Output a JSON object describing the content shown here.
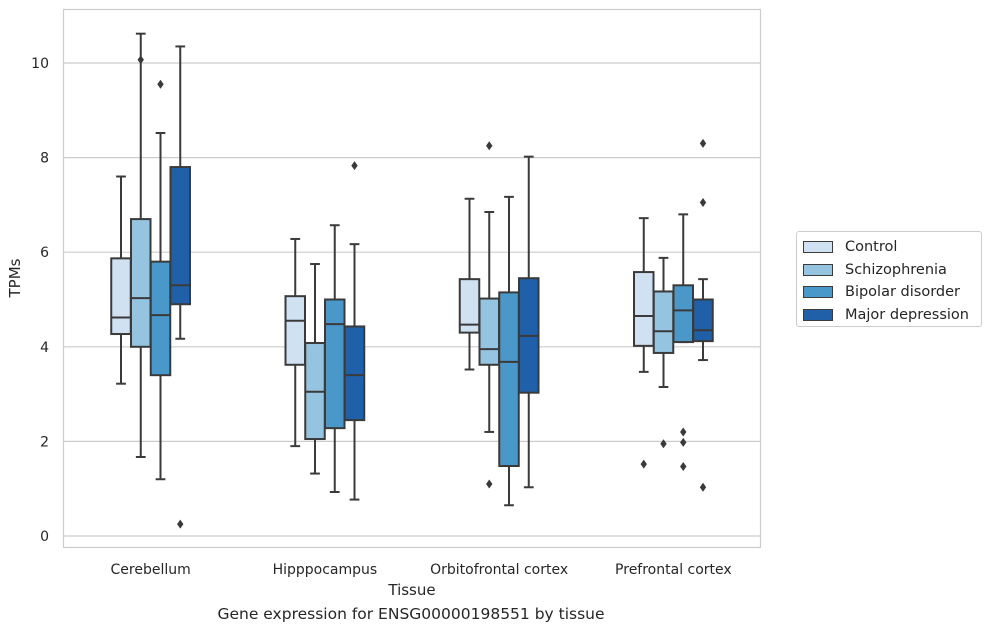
{
  "chart_data": {
    "type": "box",
    "title": "",
    "caption": "Gene expression for ENSG00000198551 by tissue",
    "xlabel": "Tissue",
    "ylabel": "TPMs",
    "ylim": [
      -0.25,
      11.2
    ],
    "yticks": [
      0,
      2,
      4,
      6,
      8,
      10
    ],
    "grid": "horizontal",
    "legend_position": "right",
    "categories": [
      "Cerebellum",
      "Hipppocampus",
      "Orbitofrontal cortex",
      "Prefrontal cortex"
    ],
    "series": [
      {
        "name": "Control",
        "color": "#d0e1f2",
        "boxes": [
          {
            "whisker_low": 3.22,
            "q1": 4.27,
            "median": 4.62,
            "q3": 5.87,
            "whisker_high": 7.6,
            "outliers": []
          },
          {
            "whisker_low": 1.9,
            "q1": 3.62,
            "median": 4.55,
            "q3": 5.07,
            "whisker_high": 6.28,
            "outliers": []
          },
          {
            "whisker_low": 3.52,
            "q1": 4.3,
            "median": 4.47,
            "q3": 5.43,
            "whisker_high": 7.13,
            "outliers": []
          },
          {
            "whisker_low": 3.47,
            "q1": 4.02,
            "median": 4.65,
            "q3": 5.58,
            "whisker_high": 6.72,
            "outliers": [
              1.52
            ]
          }
        ]
      },
      {
        "name": "Schizophrenia",
        "color": "#94c4df",
        "boxes": [
          {
            "whisker_low": 1.67,
            "q1": 4.0,
            "median": 5.03,
            "q3": 6.7,
            "whisker_high": 10.62,
            "outliers": [
              10.07
            ]
          },
          {
            "whisker_low": 1.32,
            "q1": 2.05,
            "median": 3.05,
            "q3": 4.08,
            "whisker_high": 5.75,
            "outliers": []
          },
          {
            "whisker_low": 2.2,
            "q1": 3.62,
            "median": 3.95,
            "q3": 5.02,
            "whisker_high": 6.85,
            "outliers": [
              1.1,
              8.25
            ]
          },
          {
            "whisker_low": 3.15,
            "q1": 3.87,
            "median": 4.33,
            "q3": 5.17,
            "whisker_high": 5.88,
            "outliers": [
              1.95
            ]
          }
        ]
      },
      {
        "name": "Bipolar disorder",
        "color": "#4a98c9",
        "boxes": [
          {
            "whisker_low": 1.2,
            "q1": 3.4,
            "median": 4.67,
            "q3": 5.8,
            "whisker_high": 8.52,
            "outliers": [
              9.55
            ]
          },
          {
            "whisker_low": 0.93,
            "q1": 2.28,
            "median": 4.48,
            "q3": 5.0,
            "whisker_high": 6.57,
            "outliers": []
          },
          {
            "whisker_low": 0.65,
            "q1": 1.48,
            "median": 3.68,
            "q3": 5.15,
            "whisker_high": 7.17,
            "outliers": []
          },
          {
            "whisker_low": 4.1,
            "q1": 4.1,
            "median": 4.77,
            "q3": 5.3,
            "whisker_high": 6.8,
            "outliers": [
              1.47,
              1.98,
              2.2
            ]
          }
        ]
      },
      {
        "name": "Major depression",
        "color": "#2060a8",
        "boxes": [
          {
            "whisker_low": 4.17,
            "q1": 4.9,
            "median": 5.3,
            "q3": 7.8,
            "whisker_high": 10.35,
            "outliers": [
              0.25
            ]
          },
          {
            "whisker_low": 0.77,
            "q1": 2.45,
            "median": 3.4,
            "q3": 4.43,
            "whisker_high": 6.17,
            "outliers": [
              7.83
            ]
          },
          {
            "whisker_low": 1.03,
            "q1": 3.03,
            "median": 4.23,
            "q3": 5.45,
            "whisker_high": 8.02,
            "outliers": []
          },
          {
            "whisker_low": 3.72,
            "q1": 4.12,
            "median": 4.35,
            "q3": 5.0,
            "whisker_high": 5.43,
            "outliers": [
              1.03,
              7.05,
              8.3
            ]
          }
        ]
      }
    ]
  }
}
